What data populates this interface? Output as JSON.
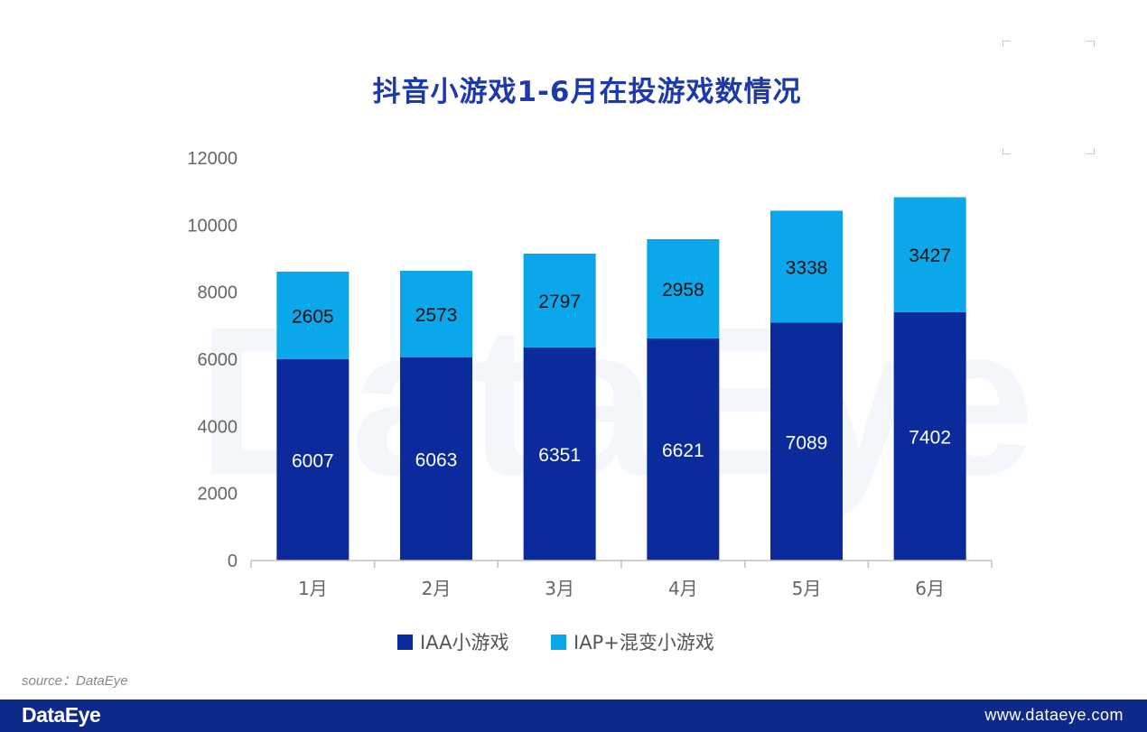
{
  "title": "抖音小游戏1-6月在投游戏数情况",
  "source": "source：DataEye",
  "footer": {
    "logo": "DataEye",
    "url": "www.dataeye.com"
  },
  "watermark": "DataEye",
  "chart_data": {
    "type": "bar",
    "stacked": true,
    "title": "抖音小游戏1-6月在投游戏数情况",
    "categories": [
      "1月",
      "2月",
      "3月",
      "4月",
      "5月",
      "6月"
    ],
    "series": [
      {
        "name": "IAA小游戏",
        "values": [
          6007,
          6063,
          6351,
          6621,
          7089,
          7402
        ],
        "color": "#0b2a9c",
        "label_color": "#ffffff"
      },
      {
        "name": "IAP+混变小游戏",
        "values": [
          2605,
          2573,
          2797,
          2958,
          3338,
          3427
        ],
        "color": "#0aa8ea",
        "label_color": "#111111"
      }
    ],
    "ylim": [
      0,
      12000
    ],
    "yticks": [
      "0",
      "2000",
      "4000",
      "6000",
      "8000",
      "10000",
      "12000"
    ],
    "grid": false,
    "legend": "bottom"
  }
}
